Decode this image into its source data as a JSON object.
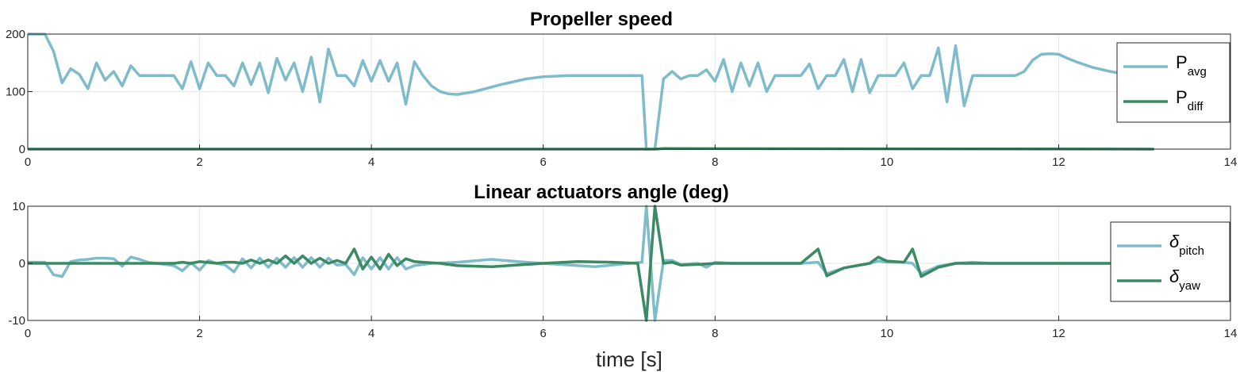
{
  "chart_data": [
    {
      "type": "line",
      "title": "Propeller speed",
      "xlabel": "",
      "ylabel": "",
      "xlim": [
        0,
        14
      ],
      "ylim": [
        0,
        200
      ],
      "xticks": [
        0,
        2,
        4,
        6,
        8,
        10,
        12,
        14
      ],
      "yticks": [
        0,
        100,
        200
      ],
      "grid": true,
      "legend_location": "right",
      "series": [
        {
          "name": "P_avg",
          "label_main": "P",
          "label_sub": "avg",
          "color": "#7fbccb",
          "x": [
            0,
            0.2,
            0.3,
            0.4,
            0.5,
            0.6,
            0.7,
            0.8,
            0.9,
            1.0,
            1.1,
            1.2,
            1.3,
            1.4,
            1.5,
            1.6,
            1.7,
            1.8,
            1.9,
            2.0,
            2.1,
            2.2,
            2.3,
            2.4,
            2.5,
            2.6,
            2.7,
            2.8,
            2.9,
            3.0,
            3.1,
            3.2,
            3.3,
            3.4,
            3.5,
            3.6,
            3.7,
            3.8,
            3.9,
            4.0,
            4.1,
            4.2,
            4.3,
            4.4,
            4.5,
            4.6,
            4.7,
            4.8,
            4.9,
            5.0,
            5.2,
            5.5,
            5.8,
            6.0,
            6.3,
            6.6,
            7.0,
            7.15,
            7.2,
            7.3,
            7.4,
            7.5,
            7.6,
            7.7,
            7.8,
            7.9,
            8.0,
            8.1,
            8.2,
            8.3,
            8.4,
            8.5,
            8.6,
            8.7,
            8.8,
            8.9,
            9.0,
            9.1,
            9.2,
            9.3,
            9.4,
            9.5,
            9.6,
            9.7,
            9.8,
            9.9,
            10.0,
            10.1,
            10.2,
            10.3,
            10.4,
            10.5,
            10.6,
            10.7,
            10.8,
            10.9,
            11.0,
            11.1,
            11.2,
            11.3,
            11.4,
            11.5,
            11.6,
            11.7,
            11.8,
            11.9,
            12.0,
            12.1,
            12.2,
            12.4,
            12.6,
            12.8
          ],
          "y": [
            200,
            200,
            170,
            115,
            140,
            130,
            105,
            150,
            120,
            135,
            110,
            145,
            128,
            128,
            128,
            128,
            128,
            105,
            152,
            105,
            150,
            128,
            128,
            110,
            150,
            112,
            150,
            98,
            158,
            120,
            150,
            100,
            160,
            82,
            174,
            128,
            128,
            110,
            154,
            118,
            154,
            118,
            150,
            78,
            152,
            128,
            110,
            100,
            96,
            95,
            100,
            112,
            122,
            126,
            128,
            128,
            128,
            128,
            0,
            0,
            122,
            135,
            122,
            128,
            128,
            138,
            118,
            156,
            100,
            150,
            110,
            150,
            100,
            128,
            128,
            128,
            128,
            148,
            105,
            128,
            128,
            156,
            100,
            156,
            98,
            128,
            128,
            128,
            150,
            105,
            128,
            128,
            176,
            82,
            180,
            75,
            128,
            128,
            128,
            128,
            128,
            128,
            135,
            155,
            165,
            166,
            165,
            158,
            152,
            142,
            135,
            130
          ]
        },
        {
          "name": "P_diff",
          "label_main": "P",
          "label_sub": "diff",
          "color": "#3a8a63",
          "x": [
            0,
            7.2,
            7.3,
            7.4,
            13.1
          ],
          "y": [
            0,
            0,
            0,
            1,
            0
          ]
        }
      ]
    },
    {
      "type": "line",
      "title": "Linear actuators angle (deg)",
      "xlabel": "time [s]",
      "ylabel": "",
      "xlim": [
        0,
        14
      ],
      "ylim": [
        -10,
        10
      ],
      "xticks": [
        0,
        2,
        4,
        6,
        8,
        10,
        12,
        14
      ],
      "yticks": [
        -10,
        0,
        10
      ],
      "grid": true,
      "legend_location": "right",
      "series": [
        {
          "name": "delta_pitch",
          "label_main": "δ",
          "label_sub": "pitch",
          "color": "#7fbccb",
          "x": [
            0,
            0.2,
            0.3,
            0.4,
            0.5,
            0.6,
            0.7,
            0.8,
            0.9,
            1.0,
            1.1,
            1.2,
            1.3,
            1.4,
            1.5,
            1.6,
            1.7,
            1.8,
            1.9,
            2.0,
            2.1,
            2.2,
            2.3,
            2.4,
            2.5,
            2.6,
            2.7,
            2.8,
            2.9,
            3.0,
            3.1,
            3.2,
            3.3,
            3.4,
            3.5,
            3.6,
            3.7,
            3.8,
            3.9,
            4.0,
            4.1,
            4.2,
            4.3,
            4.4,
            4.5,
            4.7,
            5.0,
            5.4,
            5.8,
            6.2,
            6.6,
            7.0,
            7.15,
            7.2,
            7.3,
            7.4,
            7.5,
            7.6,
            7.8,
            7.9,
            8.0,
            8.2,
            8.5,
            9.0,
            9.2,
            9.3,
            9.5,
            9.8,
            9.9,
            10.0,
            10.2,
            10.3,
            10.4,
            10.6,
            10.8,
            11.0,
            11.2,
            11.5,
            12.0,
            12.5,
            13.1
          ],
          "y": [
            0.2,
            0.2,
            -2,
            -2.3,
            0.3,
            0.6,
            0.7,
            0.9,
            0.9,
            0.8,
            -0.5,
            1.1,
            0.7,
            0.2,
            0,
            -0.2,
            -0.4,
            -1.3,
            0.1,
            -1.2,
            0.5,
            0,
            -0.3,
            -1.5,
            0.8,
            -0.8,
            0.9,
            -0.7,
            0.9,
            -0.7,
            1.0,
            -0.7,
            1.0,
            -0.7,
            0.9,
            -0.3,
            -0.2,
            -2,
            1,
            -1,
            1,
            -1,
            1,
            -1,
            -0.4,
            0,
            0.2,
            0.7,
            0.2,
            -0.2,
            -0.6,
            0,
            0.2,
            10,
            -10,
            0.5,
            0.5,
            -0.2,
            0,
            -0.7,
            0.2,
            0,
            0,
            0,
            0.2,
            -1.8,
            -0.8,
            0,
            0.4,
            0.2,
            0.2,
            0,
            -1.8,
            -0.5,
            0,
            0.2,
            0,
            0,
            0,
            0,
            0
          ]
        },
        {
          "name": "delta_yaw",
          "label_main": "δ",
          "label_sub": "yaw",
          "color": "#3a8a63",
          "x": [
            0,
            1.5,
            1.7,
            1.8,
            1.9,
            2.0,
            2.2,
            2.3,
            2.4,
            2.5,
            2.6,
            2.7,
            2.8,
            2.9,
            3.0,
            3.1,
            3.2,
            3.3,
            3.4,
            3.5,
            3.6,
            3.7,
            3.8,
            3.9,
            4.0,
            4.1,
            4.2,
            4.3,
            4.4,
            4.5,
            4.6,
            4.8,
            5.0,
            5.4,
            6.0,
            6.4,
            6.8,
            7.1,
            7.2,
            7.3,
            7.4,
            7.5,
            7.6,
            7.8,
            8.0,
            8.2,
            8.5,
            9.0,
            9.2,
            9.3,
            9.5,
            9.8,
            9.9,
            10.0,
            10.2,
            10.3,
            10.4,
            10.6,
            10.8,
            11.0,
            11.5,
            12.0,
            12.5,
            13.1
          ],
          "y": [
            0,
            0,
            0,
            0.2,
            0,
            0.3,
            0,
            0.2,
            0.2,
            0,
            0.6,
            0,
            0.6,
            0,
            1.3,
            0,
            1.3,
            0,
            0.9,
            0,
            0.5,
            0,
            2.5,
            -1,
            1.1,
            -1,
            1.6,
            -0.4,
            0.8,
            0.3,
            0.2,
            0,
            -0.4,
            -0.6,
            0,
            0.3,
            0.2,
            0,
            -10,
            10,
            0,
            0.2,
            -0.3,
            -0.2,
            0,
            0,
            0,
            0,
            2.5,
            -2.2,
            -0.8,
            0,
            1.1,
            0.4,
            0.2,
            2.5,
            -2.3,
            -0.7,
            0,
            0,
            0,
            0,
            0,
            0
          ]
        }
      ]
    }
  ]
}
